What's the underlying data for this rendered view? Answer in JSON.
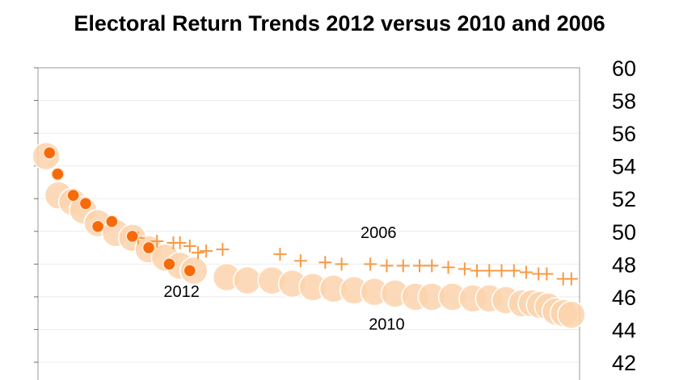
{
  "chart_data": {
    "type": "scatter",
    "title": "Electoral Return Trends 2012 versus 2010 and 2006",
    "ylim": [
      42,
      60
    ],
    "yticks": [
      42,
      44,
      46,
      48,
      50,
      52,
      54,
      56,
      58,
      60
    ],
    "ytick_labels": [
      "42",
      "44",
      "46",
      "48",
      "50",
      "52",
      "54",
      "56",
      "58",
      "60"
    ],
    "xlim": [
      0,
      66
    ],
    "grid": true,
    "annotations": [
      {
        "text": "2006",
        "x": 41.5,
        "y": 49.6
      },
      {
        "text": "2012",
        "x": 17.5,
        "y": 46.0
      },
      {
        "text": "2010",
        "x": 42.5,
        "y": 44.0
      }
    ],
    "colors": {
      "s2010": "#fbd3ad",
      "s2006": "#f79a45",
      "s2012": "#f76a0a"
    },
    "series": [
      {
        "key": "2010",
        "marker": "bubble",
        "x": [
          1,
          2.5,
          4.2,
          5.5,
          7.3,
          9.5,
          11.5,
          13.5,
          15.5,
          17.3,
          19,
          23,
          25.5,
          28.5,
          31,
          33.5,
          36,
          38.5,
          41,
          43.5,
          46,
          48,
          50.5,
          53,
          55,
          57,
          59,
          60.2,
          61.2,
          62.2,
          63.1,
          64.1,
          65
        ],
        "y": [
          54.6,
          52.2,
          51.8,
          51.3,
          50.5,
          49.9,
          49.6,
          48.9,
          48.4,
          47.9,
          47.6,
          47.2,
          47.0,
          47.0,
          46.8,
          46.6,
          46.5,
          46.4,
          46.3,
          46.2,
          46.0,
          46.0,
          46.0,
          45.9,
          45.9,
          45.8,
          45.6,
          45.6,
          45.5,
          45.4,
          45.1,
          45.0,
          44.9
        ]
      },
      {
        "key": "2006",
        "marker": "plus",
        "x": [
          12.2,
          14.5,
          16.5,
          17.3,
          18.5,
          19.5,
          20.5,
          22.5,
          29.5,
          32,
          35,
          37,
          40.5,
          42.5,
          44.5,
          46.5,
          48,
          50,
          52,
          53.5,
          55,
          56.5,
          58,
          59.5,
          61,
          62,
          64,
          65
        ],
        "y": [
          49.6,
          49.4,
          49.3,
          49.3,
          49.1,
          48.7,
          48.8,
          48.9,
          48.6,
          48.2,
          48.1,
          48.0,
          48.0,
          47.9,
          47.9,
          47.9,
          47.9,
          47.8,
          47.7,
          47.6,
          47.6,
          47.6,
          47.6,
          47.5,
          47.4,
          47.4,
          47.1,
          47.1
        ]
      },
      {
        "key": "2012",
        "marker": "dot",
        "x": [
          1.4,
          2.4,
          4.3,
          5.8,
          7.3,
          9.0,
          11.5,
          13.5,
          16.0,
          18.5
        ],
        "y": [
          54.8,
          53.5,
          52.2,
          51.7,
          50.3,
          50.6,
          49.7,
          49.0,
          48.0,
          47.6
        ]
      }
    ]
  }
}
